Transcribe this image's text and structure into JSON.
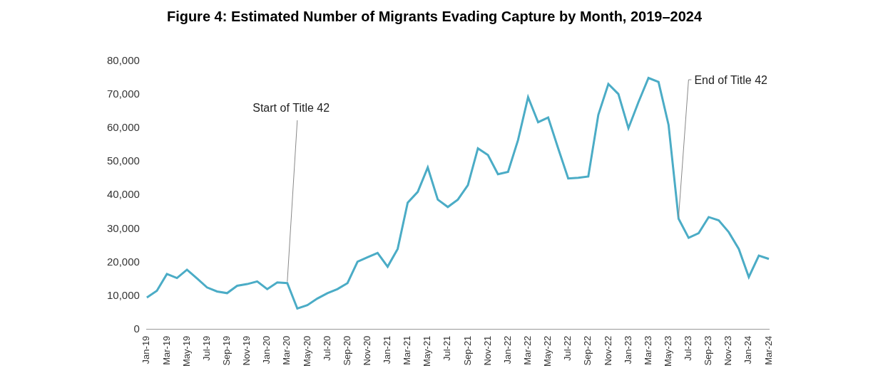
{
  "chart_data": {
    "type": "line",
    "title": "Figure 4: Estimated Number of Migrants Evading Capture by Month, 2019–2024",
    "categories": [
      "Jan-19",
      null,
      "Mar-19",
      null,
      "May-19",
      null,
      "Jul-19",
      null,
      "Sep-19",
      null,
      "Nov-19",
      null,
      "Jan-20",
      null,
      "Mar-20",
      null,
      "May-20",
      null,
      "Jul-20",
      null,
      "Sep-20",
      null,
      "Nov-20",
      null,
      "Jan-21",
      null,
      "Mar-21",
      null,
      "May-21",
      null,
      "Jul-21",
      null,
      "Sep-21",
      null,
      "Nov-21",
      null,
      "Jan-22",
      null,
      "Mar-22",
      null,
      "May-22",
      null,
      "Jul-22",
      null,
      "Sep-22",
      null,
      "Nov-22",
      null,
      "Jan-23",
      null,
      "Mar-23",
      null,
      "May-23",
      null,
      "Jul-23",
      null,
      "Sep-23",
      null,
      "Nov-23",
      null,
      "Jan-24",
      null,
      "Mar-24"
    ],
    "values": [
      9500,
      11500,
      16500,
      15300,
      17800,
      15200,
      12500,
      11300,
      10800,
      13000,
      13500,
      14300,
      12000,
      14000,
      13800,
      6200,
      7200,
      9200,
      10800,
      12000,
      13800,
      20200,
      21500,
      22800,
      18700,
      24000,
      37800,
      41000,
      48300,
      38700,
      36500,
      38700,
      43000,
      54000,
      52000,
      46300,
      47000,
      56500,
      69300,
      61800,
      63200,
      54000,
      45000,
      45200,
      45600,
      64000,
      73200,
      70200,
      60000,
      67800,
      75000,
      73800,
      61000,
      33000,
      27300,
      28700,
      33500,
      32500,
      29000,
      24000,
      15600,
      22000,
      21000
    ],
    "color": "#4bacc6",
    "ylim": [
      0,
      80000
    ],
    "yticks": [
      0,
      {
        "value": 10000,
        "label": "10,000"
      },
      {
        "value": 20000,
        "label": "20,000"
      },
      {
        "value": 30000,
        "label": "30,000"
      },
      {
        "value": 40000,
        "label": "40,000"
      },
      {
        "value": 50000,
        "label": "50,000"
      },
      {
        "value": 60000,
        "label": "60,000"
      },
      {
        "value": 70000,
        "label": "70,000"
      },
      {
        "value": 80000,
        "label": "80,000"
      }
    ],
    "grid": false,
    "annotations": [
      {
        "text": "Start of Title 42",
        "at": 14
      },
      {
        "text": "End of Title 42",
        "at": 53
      }
    ]
  }
}
